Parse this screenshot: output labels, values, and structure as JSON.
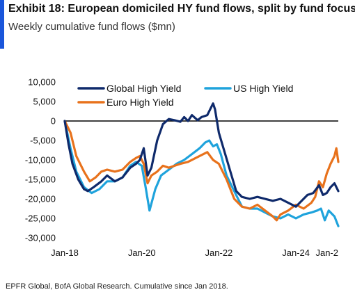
{
  "header": {
    "title": "Exhibit 18: European domiciled HY fund flows, split by fund focus",
    "subtitle": "Weekly cumulative fund flows ($mn)"
  },
  "footer": {
    "source": "EPFR Global, BofA Global Research. Cumulative since Jan 2018."
  },
  "chart_data": {
    "type": "line",
    "title": "",
    "xlabel": "",
    "ylabel": "",
    "ylim": [
      -30000,
      10000
    ],
    "xlim": [
      2018.0,
      2025.1
    ],
    "y_ticks": [
      "10,000",
      "5,000",
      "0",
      "-5,000",
      "-10,000",
      "-15,000",
      "-20,000",
      "-25,000",
      "-30,000"
    ],
    "y_tick_values": [
      10000,
      5000,
      0,
      -5000,
      -10000,
      -15000,
      -20000,
      -25000,
      -30000
    ],
    "x_ticks": [
      "Jan-18",
      "Jan-20",
      "Jan-22",
      "Jan-24",
      "Jan-2"
    ],
    "x_tick_values": [
      2018,
      2020,
      2022,
      2024,
      2025.85
    ],
    "grid": false,
    "zero_line": true,
    "legend_position": "top",
    "series": [
      {
        "name": "Global High Yield",
        "color": "#0f2a6b",
        "x": [
          2018.0,
          2018.1,
          2018.2,
          2018.35,
          2018.5,
          2018.6,
          2018.75,
          2018.95,
          2019.1,
          2019.3,
          2019.5,
          2019.7,
          2019.85,
          2019.95,
          2020.05,
          2020.15,
          2020.25,
          2020.4,
          2020.55,
          2020.7,
          2020.85,
          2021.0,
          2021.1,
          2021.2,
          2021.3,
          2021.45,
          2021.55,
          2021.7,
          2021.8,
          2021.85,
          2021.9,
          2022.0,
          2022.15,
          2022.3,
          2022.45,
          2022.6,
          2022.8,
          2023.0,
          2023.2,
          2023.4,
          2023.6,
          2023.8,
          2024.0,
          2024.15,
          2024.3,
          2024.45,
          2024.6,
          2024.7,
          2024.8,
          2024.9,
          2025.0,
          2025.1
        ],
        "values": [
          0,
          -6000,
          -11000,
          -15000,
          -17500,
          -18000,
          -17000,
          -15500,
          -14000,
          -15500,
          -14500,
          -12000,
          -11000,
          -10000,
          -7000,
          -14000,
          -12000,
          -5000,
          -800,
          500,
          200,
          -200,
          1000,
          0,
          1500,
          200,
          1000,
          1500,
          3500,
          4500,
          3000,
          -3000,
          -8000,
          -13000,
          -18000,
          -19500,
          -20000,
          -19500,
          -20000,
          -20500,
          -20000,
          -21000,
          -22000,
          -20500,
          -19000,
          -18500,
          -16500,
          -19000,
          -18500,
          -17000,
          -16000,
          -18000
        ]
      },
      {
        "name": "US High Yield",
        "color": "#1fa3dc",
        "x": [
          2018.0,
          2018.15,
          2018.3,
          2018.5,
          2018.7,
          2018.9,
          2019.1,
          2019.3,
          2019.5,
          2019.7,
          2019.85,
          2020.0,
          2020.1,
          2020.2,
          2020.35,
          2020.5,
          2020.7,
          2020.9,
          2021.1,
          2021.3,
          2021.5,
          2021.65,
          2021.75,
          2021.85,
          2021.95,
          2022.05,
          2022.2,
          2022.4,
          2022.6,
          2022.8,
          2023.0,
          2023.2,
          2023.4,
          2023.6,
          2023.8,
          2024.0,
          2024.2,
          2024.4,
          2024.55,
          2024.65,
          2024.75,
          2024.85,
          2025.0,
          2025.1
        ],
        "values": [
          0,
          -7000,
          -13000,
          -17000,
          -18500,
          -17500,
          -15500,
          -15500,
          -14500,
          -11500,
          -10500,
          -11500,
          -17000,
          -23000,
          -17500,
          -14000,
          -12500,
          -11000,
          -10000,
          -8500,
          -7000,
          -5500,
          -5000,
          -6500,
          -6000,
          -8500,
          -14000,
          -18000,
          -22000,
          -22500,
          -22500,
          -23500,
          -24500,
          -25000,
          -24000,
          -25000,
          -24000,
          -23500,
          -23000,
          -22500,
          -25500,
          -23000,
          -24500,
          -27000
        ]
      },
      {
        "name": "Euro High Yield",
        "color": "#e8721c",
        "x": [
          2018.0,
          2018.15,
          2018.3,
          2018.5,
          2018.65,
          2018.8,
          2018.95,
          2019.1,
          2019.3,
          2019.5,
          2019.7,
          2019.85,
          2019.95,
          2020.05,
          2020.15,
          2020.25,
          2020.4,
          2020.55,
          2020.7,
          2020.85,
          2021.0,
          2021.2,
          2021.4,
          2021.6,
          2021.7,
          2021.85,
          2022.0,
          2022.2,
          2022.4,
          2022.6,
          2022.8,
          2023.0,
          2023.2,
          2023.4,
          2023.5,
          2023.6,
          2023.8,
          2024.0,
          2024.2,
          2024.4,
          2024.5,
          2024.6,
          2024.7,
          2024.8,
          2024.9,
          2025.0,
          2025.05,
          2025.1
        ],
        "values": [
          0,
          -3000,
          -9000,
          -13000,
          -15500,
          -14500,
          -13000,
          -12500,
          -13000,
          -12500,
          -10500,
          -9500,
          -9000,
          -11000,
          -16000,
          -14000,
          -13000,
          -11500,
          -12000,
          -11500,
          -11000,
          -10500,
          -9500,
          -8500,
          -8000,
          -10000,
          -11000,
          -15000,
          -20000,
          -22000,
          -22500,
          -21500,
          -23000,
          -24500,
          -25500,
          -24000,
          -23000,
          -21500,
          -22500,
          -21000,
          -19500,
          -15500,
          -17000,
          -13500,
          -11000,
          -9000,
          -7000,
          -10500
        ]
      }
    ]
  }
}
